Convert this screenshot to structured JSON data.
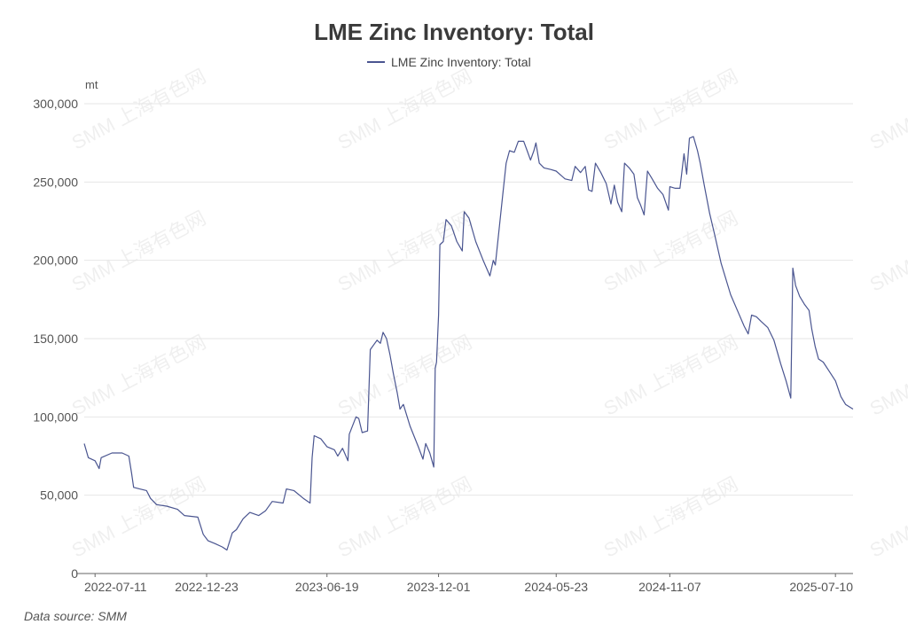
{
  "chart_data": {
    "type": "line",
    "title": "LME Zinc Inventory: Total",
    "ylabel": "mt",
    "ylim": [
      0,
      300000
    ],
    "yticks": [
      0,
      50000,
      100000,
      150000,
      200000,
      250000,
      300000
    ],
    "ytick_labels": [
      "0",
      "50,000",
      "100,000",
      "150,000",
      "200,000",
      "250,000",
      "300,000"
    ],
    "xlim": [
      "2022-06-25",
      "2025-08-05"
    ],
    "xtick_labels": [
      "2022-07-11",
      "2022-12-23",
      "2023-06-19",
      "2023-12-01",
      "2024-05-23",
      "2024-11-07",
      "2025-07-10"
    ],
    "legend": "top-center",
    "grid": "horizontal",
    "series": [
      {
        "name": "LME Zinc Inventory: Total",
        "color": "#4a5590",
        "points": [
          [
            "2022-06-25",
            83000
          ],
          [
            "2022-07-01",
            74000
          ],
          [
            "2022-07-11",
            72000
          ],
          [
            "2022-07-17",
            67000
          ],
          [
            "2022-07-20",
            74000
          ],
          [
            "2022-08-05",
            77000
          ],
          [
            "2022-08-20",
            77000
          ],
          [
            "2022-08-30",
            75000
          ],
          [
            "2022-09-03",
            64000
          ],
          [
            "2022-09-06",
            55000
          ],
          [
            "2022-09-15",
            54000
          ],
          [
            "2022-09-25",
            53000
          ],
          [
            "2022-10-01",
            48000
          ],
          [
            "2022-10-10",
            44000
          ],
          [
            "2022-10-25",
            43000
          ],
          [
            "2022-11-10",
            41000
          ],
          [
            "2022-11-20",
            37000
          ],
          [
            "2022-12-10",
            36000
          ],
          [
            "2022-12-18",
            25000
          ],
          [
            "2022-12-25",
            21000
          ],
          [
            "2023-01-05",
            19000
          ],
          [
            "2023-01-15",
            17000
          ],
          [
            "2023-01-22",
            15000
          ],
          [
            "2023-01-30",
            26000
          ],
          [
            "2023-02-05",
            28000
          ],
          [
            "2023-02-15",
            35000
          ],
          [
            "2023-02-25",
            39000
          ],
          [
            "2023-03-10",
            37000
          ],
          [
            "2023-03-20",
            40000
          ],
          [
            "2023-03-30",
            46000
          ],
          [
            "2023-04-15",
            45000
          ],
          [
            "2023-04-20",
            54000
          ],
          [
            "2023-05-01",
            53000
          ],
          [
            "2023-05-15",
            48000
          ],
          [
            "2023-05-25",
            45000
          ],
          [
            "2023-05-28",
            74000
          ],
          [
            "2023-05-31",
            88000
          ],
          [
            "2023-06-10",
            86000
          ],
          [
            "2023-06-19",
            81000
          ],
          [
            "2023-06-30",
            79000
          ],
          [
            "2023-07-05",
            75000
          ],
          [
            "2023-07-12",
            80000
          ],
          [
            "2023-07-20",
            72000
          ],
          [
            "2023-07-22",
            89000
          ],
          [
            "2023-08-01",
            100000
          ],
          [
            "2023-08-05",
            99000
          ],
          [
            "2023-08-10",
            90000
          ],
          [
            "2023-08-18",
            91000
          ],
          [
            "2023-08-22",
            143000
          ],
          [
            "2023-09-01",
            149000
          ],
          [
            "2023-09-06",
            147000
          ],
          [
            "2023-09-10",
            154000
          ],
          [
            "2023-09-15",
            150000
          ],
          [
            "2023-09-20",
            140000
          ],
          [
            "2023-09-25",
            128000
          ],
          [
            "2023-10-01",
            115000
          ],
          [
            "2023-10-05",
            105000
          ],
          [
            "2023-10-10",
            108000
          ],
          [
            "2023-10-20",
            94000
          ],
          [
            "2023-11-01",
            81000
          ],
          [
            "2023-11-08",
            73000
          ],
          [
            "2023-11-12",
            83000
          ],
          [
            "2023-11-18",
            77000
          ],
          [
            "2023-11-24",
            68000
          ],
          [
            "2023-11-26",
            131000
          ],
          [
            "2023-11-28",
            135000
          ],
          [
            "2023-12-01",
            165000
          ],
          [
            "2023-12-03",
            210000
          ],
          [
            "2023-12-08",
            212000
          ],
          [
            "2023-12-12",
            226000
          ],
          [
            "2023-12-20",
            222000
          ],
          [
            "2023-12-28",
            212000
          ],
          [
            "2024-01-05",
            206000
          ],
          [
            "2024-01-08",
            231000
          ],
          [
            "2024-01-15",
            227000
          ],
          [
            "2024-01-25",
            212000
          ],
          [
            "2024-02-05",
            200000
          ],
          [
            "2024-02-15",
            190000
          ],
          [
            "2024-02-20",
            200000
          ],
          [
            "2024-02-23",
            197000
          ],
          [
            "2024-03-05",
            242000
          ],
          [
            "2024-03-10",
            262000
          ],
          [
            "2024-03-15",
            270000
          ],
          [
            "2024-03-22",
            269000
          ],
          [
            "2024-03-28",
            276000
          ],
          [
            "2024-04-05",
            276000
          ],
          [
            "2024-04-10",
            270000
          ],
          [
            "2024-04-15",
            264000
          ],
          [
            "2024-04-20",
            270000
          ],
          [
            "2024-04-23",
            275000
          ],
          [
            "2024-04-28",
            262000
          ],
          [
            "2024-05-05",
            259000
          ],
          [
            "2024-05-15",
            258000
          ],
          [
            "2024-05-23",
            257000
          ],
          [
            "2024-06-05",
            252000
          ],
          [
            "2024-06-15",
            251000
          ],
          [
            "2024-06-20",
            260000
          ],
          [
            "2024-06-28",
            256000
          ],
          [
            "2024-07-05",
            260000
          ],
          [
            "2024-07-10",
            245000
          ],
          [
            "2024-07-15",
            244000
          ],
          [
            "2024-07-20",
            262000
          ],
          [
            "2024-07-28",
            256000
          ],
          [
            "2024-08-05",
            249000
          ],
          [
            "2024-08-12",
            236000
          ],
          [
            "2024-08-17",
            248000
          ],
          [
            "2024-08-22",
            237000
          ],
          [
            "2024-08-28",
            231000
          ],
          [
            "2024-09-01",
            262000
          ],
          [
            "2024-09-08",
            259000
          ],
          [
            "2024-09-15",
            255000
          ],
          [
            "2024-09-20",
            240000
          ],
          [
            "2024-09-25",
            235000
          ],
          [
            "2024-09-30",
            229000
          ],
          [
            "2024-10-05",
            257000
          ],
          [
            "2024-10-12",
            252000
          ],
          [
            "2024-10-20",
            246000
          ],
          [
            "2024-10-28",
            242000
          ],
          [
            "2024-11-05",
            232000
          ],
          [
            "2024-11-07",
            247000
          ],
          [
            "2024-11-15",
            246000
          ],
          [
            "2024-11-22",
            246000
          ],
          [
            "2024-11-28",
            268000
          ],
          [
            "2024-12-02",
            255000
          ],
          [
            "2024-12-06",
            278000
          ],
          [
            "2024-12-12",
            279000
          ],
          [
            "2024-12-18",
            270000
          ],
          [
            "2024-12-22",
            262000
          ],
          [
            "2024-12-28",
            248000
          ],
          [
            "2025-01-05",
            230000
          ],
          [
            "2025-01-12",
            217000
          ],
          [
            "2025-01-22",
            198000
          ],
          [
            "2025-02-05",
            178000
          ],
          [
            "2025-02-15",
            168000
          ],
          [
            "2025-02-25",
            158000
          ],
          [
            "2025-03-03",
            153000
          ],
          [
            "2025-03-08",
            165000
          ],
          [
            "2025-03-15",
            164000
          ],
          [
            "2025-03-22",
            161000
          ],
          [
            "2025-04-01",
            157000
          ],
          [
            "2025-04-10",
            149000
          ],
          [
            "2025-04-20",
            134000
          ],
          [
            "2025-04-28",
            123000
          ],
          [
            "2025-05-05",
            112000
          ],
          [
            "2025-05-08",
            195000
          ],
          [
            "2025-05-12",
            184000
          ],
          [
            "2025-05-18",
            177000
          ],
          [
            "2025-05-25",
            172000
          ],
          [
            "2025-06-01",
            168000
          ],
          [
            "2025-06-05",
            156000
          ],
          [
            "2025-06-10",
            145000
          ],
          [
            "2025-06-15",
            137000
          ],
          [
            "2025-06-22",
            135000
          ],
          [
            "2025-07-01",
            129000
          ],
          [
            "2025-07-10",
            123000
          ],
          [
            "2025-07-18",
            113000
          ],
          [
            "2025-07-25",
            108000
          ],
          [
            "2025-08-05",
            105000
          ]
        ]
      }
    ],
    "watermark": "SMM 上海有色网",
    "source": "Data source:  SMM"
  }
}
